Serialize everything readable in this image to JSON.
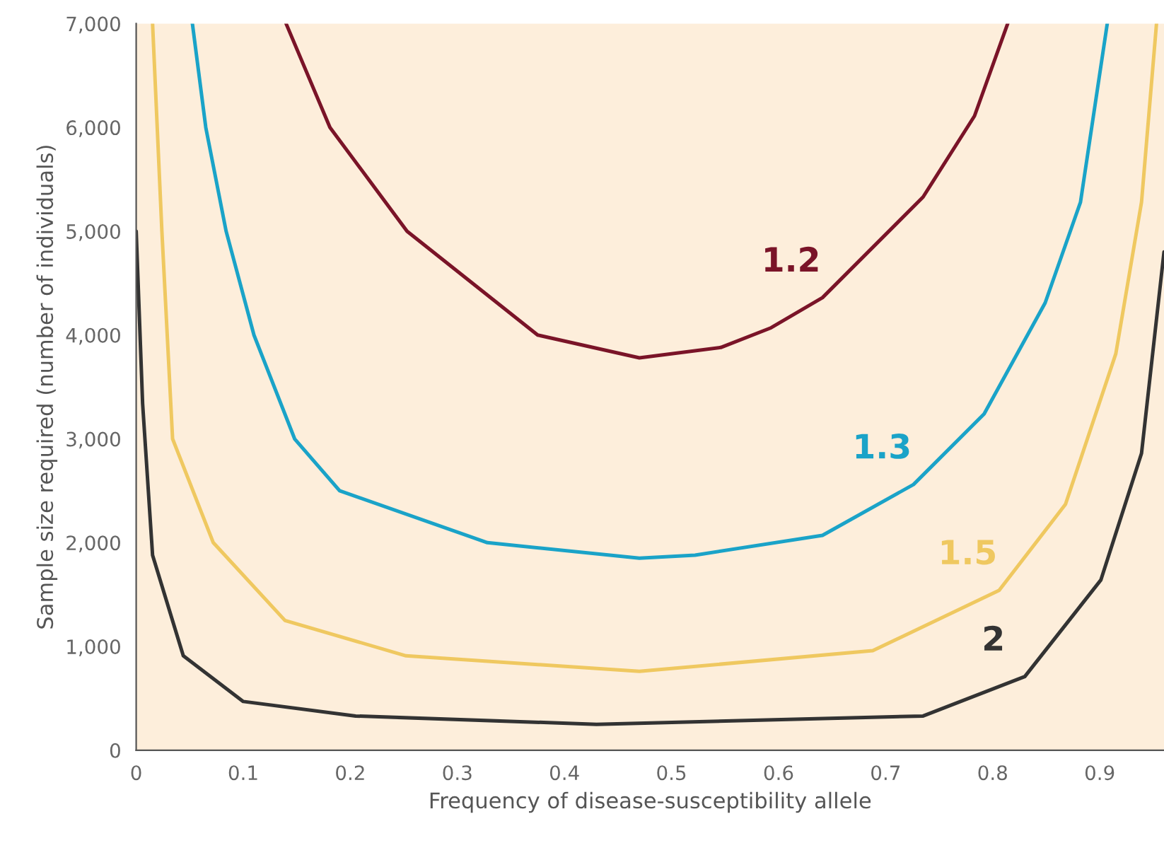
{
  "chart_data": {
    "type": "line",
    "xlabel": "Frequency of disease-susceptibility allele",
    "ylabel": "Sample size required (number of individuals)",
    "xlim": [
      0,
      0.96
    ],
    "ylim": [
      0,
      7000
    ],
    "xticks": [
      0,
      0.1,
      0.2,
      0.3,
      0.4,
      0.5,
      0.6,
      0.7,
      0.8,
      0.9
    ],
    "yticks": [
      0,
      {
        "value": 1000,
        "label": "1,000"
      },
      {
        "value": 2000,
        "label": "2,000"
      },
      {
        "value": 3000,
        "label": "3,000"
      },
      {
        "value": 4000,
        "label": "4,000"
      },
      {
        "value": 5000,
        "label": "5,000"
      },
      {
        "value": 6000,
        "label": "6,000"
      },
      {
        "value": 7000,
        "label": "7,000"
      }
    ],
    "grid": false,
    "marker": "none",
    "line_style": "solid",
    "series": [
      {
        "name": "1.2",
        "color": "#7a1428",
        "x": [
          0.14,
          0.181,
          0.253,
          0.375,
          0.47,
          0.546,
          0.593,
          0.641,
          0.735,
          0.783,
          0.814
        ],
        "values": [
          7000,
          6000,
          5000,
          4000,
          3780,
          3880,
          4070,
          4360,
          5330,
          6110,
          7000
        ]
      },
      {
        "name": "1.3",
        "color": "#1aa3c8",
        "x": [
          0.0525,
          0.065,
          0.084,
          0.11,
          0.148,
          0.19,
          0.328,
          0.47,
          0.522,
          0.641,
          0.726,
          0.792,
          0.849,
          0.882,
          0.907
        ],
        "values": [
          7000,
          6000,
          5000,
          4000,
          3000,
          2500,
          2000,
          1850,
          1880,
          2070,
          2560,
          3240,
          4310,
          5280,
          7000
        ]
      },
      {
        "name": "1.5",
        "color": "#efc860",
        "x": [
          0.0153,
          0.024,
          0.034,
          0.072,
          0.139,
          0.252,
          0.47,
          0.688,
          0.806,
          0.868,
          0.915,
          0.939,
          0.953
        ],
        "values": [
          7000,
          5000,
          3000,
          2000,
          1250,
          910,
          760,
          960,
          1540,
          2370,
          3820,
          5280,
          7000
        ]
      },
      {
        "name": "2",
        "color": "#333333",
        "x": [
          0,
          0.006,
          0.0153,
          0.044,
          0.1,
          0.205,
          0.43,
          0.735,
          0.83,
          0.901,
          0.939,
          0.96
        ],
        "values": [
          5000,
          3340,
          1880,
          910,
          470,
          330,
          250,
          330,
          710,
          1640,
          2860,
          4800
        ]
      }
    ]
  }
}
